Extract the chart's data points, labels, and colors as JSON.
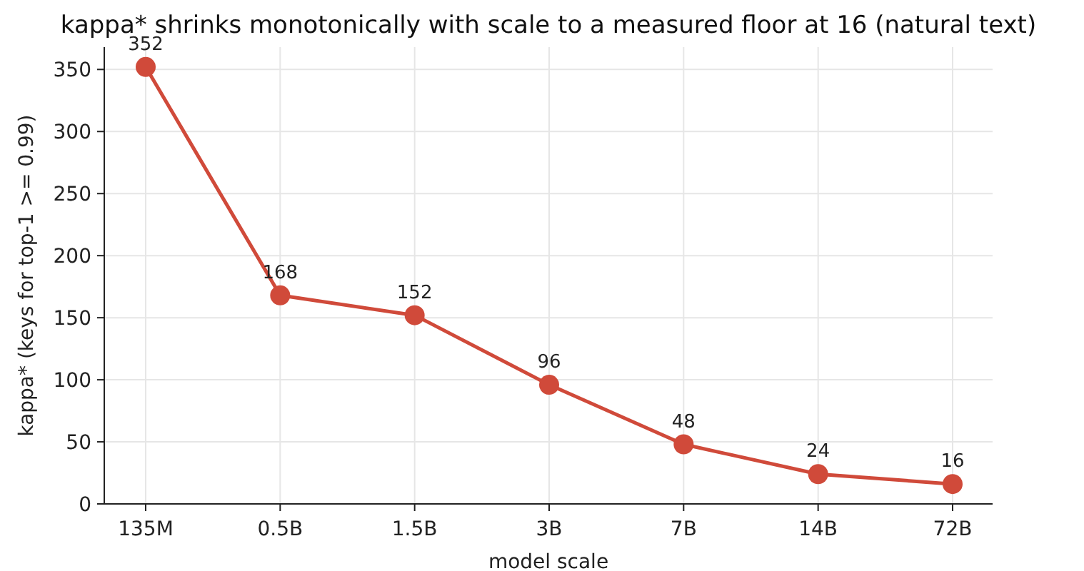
{
  "chart_data": {
    "type": "line",
    "title": "kappa* shrinks monotonically with scale to a measured floor at 16 (natural text)",
    "xlabel": "model scale",
    "ylabel": "kappa* (keys for top-1 >= 0.99)",
    "categories": [
      "135M",
      "0.5B",
      "1.5B",
      "3B",
      "7B",
      "14B",
      "72B"
    ],
    "series": [
      {
        "color": "#d04a3a",
        "values": [
          352,
          168,
          152,
          96,
          48,
          24,
          16
        ]
      }
    ],
    "ylim": [
      0,
      368
    ],
    "yticks": [
      0,
      50,
      100,
      150,
      200,
      250,
      300,
      350
    ],
    "grid": true,
    "marker": "circle",
    "line_style": "solid",
    "data_labels": true
  }
}
